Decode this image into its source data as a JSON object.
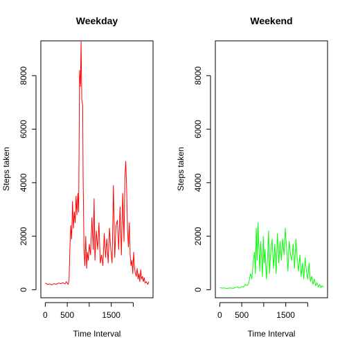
{
  "chart_data": [
    {
      "type": "line",
      "title": "Weekday",
      "xlabel": "Time Interval",
      "ylabel": "Steps taken",
      "xlim": [
        -100,
        2450
      ],
      "ylim": [
        -300,
        9300
      ],
      "xticks": [
        0,
        500,
        1500
      ],
      "xtick_minor": [
        1000,
        2000
      ],
      "yticks": [
        0,
        2000,
        4000,
        6000,
        8000
      ],
      "grid": false,
      "series": [
        {
          "color": "#ff0000",
          "x": [
            0,
            50,
            100,
            150,
            200,
            250,
            300,
            350,
            400,
            450,
            480,
            500,
            520,
            540,
            560,
            580,
            600,
            620,
            640,
            660,
            680,
            700,
            720,
            740,
            760,
            780,
            800,
            815,
            830,
            850,
            860,
            880,
            900,
            920,
            940,
            960,
            980,
            1000,
            1030,
            1060,
            1090,
            1110,
            1130,
            1160,
            1190,
            1220,
            1250,
            1280,
            1310,
            1340,
            1370,
            1400,
            1430,
            1460,
            1490,
            1520,
            1550,
            1580,
            1610,
            1640,
            1670,
            1700,
            1730,
            1760,
            1790,
            1810,
            1830,
            1850,
            1870,
            1890,
            1910,
            1930,
            1950,
            1970,
            1990,
            2010,
            2030,
            2050,
            2070,
            2090,
            2110,
            2130,
            2150,
            2170,
            2190,
            2210,
            2230,
            2250,
            2270,
            2300,
            2330,
            2355
          ],
          "y": [
            250,
            200,
            220,
            180,
            230,
            200,
            250,
            230,
            260,
            220,
            300,
            240,
            200,
            350,
            1500,
            2400,
            1900,
            3300,
            2300,
            2900,
            2500,
            3500,
            2800,
            3600,
            2900,
            8200,
            7600,
            9300,
            7100,
            6900,
            4300,
            1500,
            900,
            2000,
            800,
            1400,
            1100,
            1700,
            1300,
            2700,
            1500,
            3400,
            1100,
            2200,
            1500,
            2500,
            1000,
            1300,
            900,
            2100,
            1200,
            1900,
            1000,
            2300,
            1500,
            1000,
            3900,
            1200,
            2400,
            2600,
            1500,
            3100,
            1300,
            3600,
            1800,
            4200,
            4800,
            3800,
            2200,
            1600,
            2500,
            1300,
            900,
            1100,
            600,
            1400,
            800,
            600,
            500,
            800,
            400,
            600,
            300,
            750,
            400,
            500,
            300,
            450,
            250,
            300,
            200,
            300
          ]
        }
      ]
    },
    {
      "type": "line",
      "title": "Weekend",
      "xlabel": "Time Interval",
      "ylabel": "Steps taken",
      "xlim": [
        -100,
        2450
      ],
      "ylim": [
        -300,
        9300
      ],
      "xticks": [
        0,
        500,
        1500
      ],
      "xtick_minor": [
        1000,
        2000
      ],
      "yticks": [
        0,
        2000,
        4000,
        6000,
        8000
      ],
      "grid": false,
      "series": [
        {
          "color": "#00ff00",
          "x": [
            0,
            50,
            100,
            150,
            200,
            250,
            300,
            350,
            400,
            450,
            500,
            540,
            580,
            620,
            660,
            700,
            730,
            760,
            790,
            810,
            830,
            850,
            870,
            890,
            910,
            930,
            950,
            970,
            990,
            1010,
            1030,
            1060,
            1090,
            1110,
            1130,
            1160,
            1190,
            1220,
            1250,
            1280,
            1310,
            1340,
            1370,
            1400,
            1430,
            1460,
            1490,
            1520,
            1550,
            1580,
            1610,
            1640,
            1670,
            1700,
            1730,
            1760,
            1790,
            1820,
            1850,
            1880,
            1910,
            1940,
            1970,
            2000,
            2030,
            2060,
            2090,
            2120,
            2150,
            2180,
            2210,
            2240,
            2270,
            2300,
            2330,
            2355
          ],
          "y": [
            80,
            60,
            70,
            50,
            60,
            70,
            50,
            80,
            100,
            60,
            120,
            100,
            200,
            150,
            250,
            600,
            400,
            1000,
            1400,
            600,
            2300,
            1100,
            2500,
            1500,
            700,
            1800,
            1200,
            500,
            2000,
            1000,
            1500,
            400,
            1300,
            2200,
            600,
            1400,
            1900,
            800,
            1700,
            600,
            2100,
            1000,
            1800,
            1100,
            1900,
            1300,
            2300,
            1500,
            700,
            1800,
            1300,
            1100,
            1700,
            800,
            1900,
            1200,
            700,
            1300,
            500,
            1000,
            400,
            1200,
            700,
            400,
            1000,
            300,
            500,
            200,
            400,
            150,
            250,
            100,
            200,
            80,
            150,
            90
          ]
        }
      ]
    }
  ]
}
